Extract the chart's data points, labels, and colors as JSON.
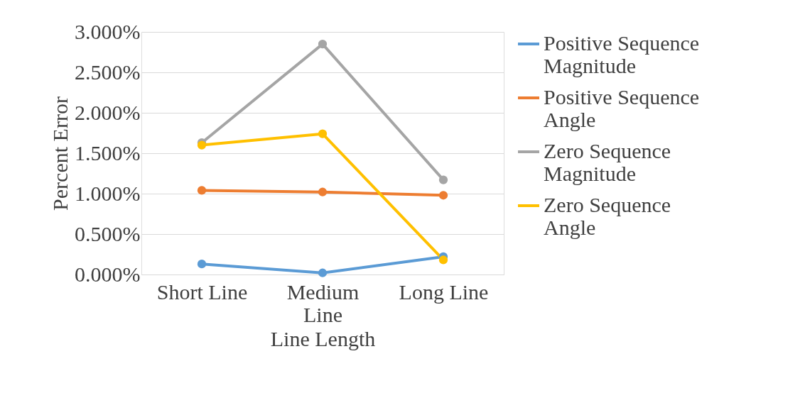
{
  "chart_data": {
    "type": "line",
    "xlabel": "Line Length",
    "ylabel": "Percent Error",
    "categories": [
      "Short Line",
      "Medium Line",
      "Long Line"
    ],
    "series": [
      {
        "name": "Positive Sequence Magnitude",
        "color": "#5b9bd5",
        "values": [
          0.13,
          0.02,
          0.22
        ]
      },
      {
        "name": "Positive Sequence Angle",
        "color": "#ed7d31",
        "values": [
          1.04,
          1.02,
          0.98
        ]
      },
      {
        "name": "Zero Sequence Magnitude",
        "color": "#a5a5a5",
        "values": [
          1.63,
          2.85,
          1.17
        ]
      },
      {
        "name": "Zero Sequence Angle",
        "color": "#ffc000",
        "values": [
          1.6,
          1.74,
          0.18
        ]
      }
    ],
    "ylim": [
      0,
      3
    ],
    "yticks": [
      {
        "value": 0,
        "label": "0.000%"
      },
      {
        "value": 0.5,
        "label": "0.500%"
      },
      {
        "value": 1,
        "label": "1.000%"
      },
      {
        "value": 1.5,
        "label": "1.500%"
      },
      {
        "value": 2,
        "label": "2.000%"
      },
      {
        "value": 2.5,
        "label": "2.500%"
      },
      {
        "value": 3,
        "label": "3.000%"
      }
    ],
    "grid": "y",
    "legend": "right",
    "marker": "circle",
    "line_style": "solid"
  }
}
